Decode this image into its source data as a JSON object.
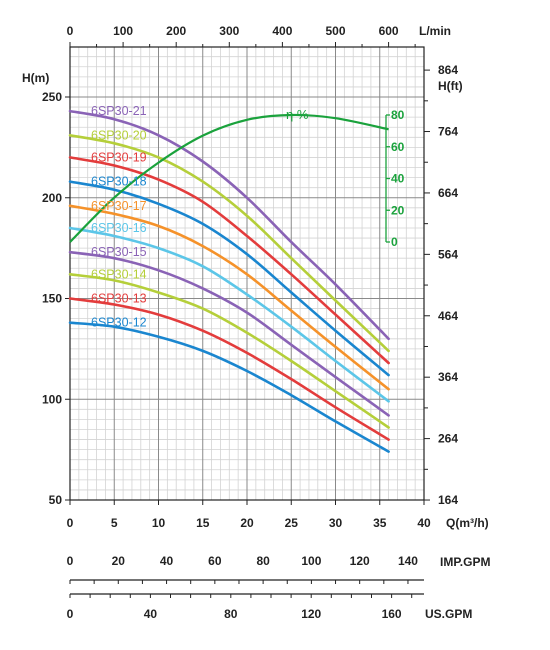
{
  "chart_data": {
    "type": "line",
    "units": {
      "q_m3h": "Q(m³/h)",
      "l_min": "L/min",
      "h_m": "H(m)",
      "h_ft": "H(ft)",
      "eff": "η %",
      "imp_gpm": "IMP.GPM",
      "us_gpm": "US.GPM"
    },
    "x_axis": {
      "range": [
        0,
        40
      ],
      "ticks": [
        "0",
        "5",
        "10",
        "15",
        "20",
        "25",
        "30",
        "35",
        "40"
      ]
    },
    "x_top_axis": {
      "range": [
        0,
        666.7
      ],
      "ticks": [
        {
          "v": 0,
          "label": "0"
        },
        {
          "v": 100,
          "label": "100"
        },
        {
          "v": 200,
          "label": "200"
        },
        {
          "v": 300,
          "label": "300"
        },
        {
          "v": 400,
          "label": "400"
        },
        {
          "v": 500,
          "label": "500"
        },
        {
          "v": 600,
          "label": "600"
        }
      ]
    },
    "y_axis": {
      "range": [
        50,
        250
      ],
      "ticks": [
        "50",
        "100",
        "150",
        "200",
        "250"
      ]
    },
    "y_right_axis": {
      "ticks": [
        {
          "v": 164,
          "label": "164"
        },
        {
          "v": 264,
          "label": "264"
        },
        {
          "v": 364,
          "label": "364"
        },
        {
          "v": 464,
          "label": "464"
        },
        {
          "v": 564,
          "label": "564"
        },
        {
          "v": 664,
          "label": "664"
        },
        {
          "v": 764,
          "label": "764"
        },
        {
          "v": 864,
          "label": "864"
        }
      ]
    },
    "efficiency_axis": {
      "range": [
        0,
        80
      ],
      "ticks": [
        "-0",
        "-20",
        "-40",
        "-60",
        "-80"
      ]
    },
    "imp_gpm_axis": {
      "ticks": [
        {
          "v": 0,
          "label": "0"
        },
        {
          "v": 20,
          "label": "20"
        },
        {
          "v": 40,
          "label": "40"
        },
        {
          "v": 60,
          "label": "60"
        },
        {
          "v": 80,
          "label": "80"
        },
        {
          "v": 100,
          "label": "100"
        },
        {
          "v": 120,
          "label": "120"
        },
        {
          "v": 140,
          "label": "140"
        }
      ]
    },
    "us_gpm_axis": {
      "ticks": [
        {
          "v": 0,
          "label": "0"
        },
        {
          "v": 40,
          "label": "40"
        },
        {
          "v": 80,
          "label": "80"
        },
        {
          "v": 120,
          "label": "120"
        },
        {
          "v": 160,
          "label": "160"
        }
      ]
    },
    "grid": true,
    "series": [
      {
        "name": "6SP30-21",
        "color": "#8a63b6",
        "x": [
          0,
          5,
          10,
          15,
          20,
          25,
          30,
          36
        ],
        "y": [
          243,
          239,
          231,
          218,
          200,
          178,
          157,
          130
        ]
      },
      {
        "name": "6SP30-20",
        "color": "#b5cf3a",
        "x": [
          0,
          5,
          10,
          15,
          20,
          25,
          30,
          36
        ],
        "y": [
          231,
          227,
          220,
          208,
          191,
          170,
          149,
          124
        ]
      },
      {
        "name": "6SP30-19",
        "color": "#e33c3c",
        "x": [
          0,
          5,
          10,
          15,
          20,
          25,
          30,
          36
        ],
        "y": [
          220,
          216,
          209,
          198,
          181,
          162,
          142,
          118
        ]
      },
      {
        "name": "6SP30-18",
        "color": "#1a86cf",
        "x": [
          0,
          5,
          10,
          15,
          20,
          25,
          30,
          36
        ],
        "y": [
          208,
          204,
          197,
          187,
          172,
          153,
          134,
          112
        ]
      },
      {
        "name": "6SP30-17",
        "color": "#f5922a",
        "x": [
          0,
          5,
          10,
          15,
          20,
          25,
          30,
          36
        ],
        "y": [
          196,
          192,
          186,
          176,
          162,
          144,
          126,
          105
        ]
      },
      {
        "name": "6SP30-16",
        "color": "#5cc6e8",
        "x": [
          0,
          5,
          10,
          15,
          20,
          25,
          30,
          36
        ],
        "y": [
          185,
          181,
          175,
          166,
          152,
          136,
          119,
          99
        ]
      },
      {
        "name": "6SP30-15",
        "color": "#8a63b6",
        "x": [
          0,
          5,
          10,
          15,
          20,
          25,
          30,
          36
        ],
        "y": [
          173,
          170,
          164,
          155,
          143,
          127,
          111,
          92
        ]
      },
      {
        "name": "6SP30-14",
        "color": "#b5cf3a",
        "x": [
          0,
          5,
          10,
          15,
          20,
          25,
          30,
          36
        ],
        "y": [
          162,
          159,
          153,
          145,
          133,
          119,
          104,
          86
        ]
      },
      {
        "name": "6SP30-13",
        "color": "#e33c3c",
        "x": [
          0,
          5,
          10,
          15,
          20,
          25,
          30,
          36
        ],
        "y": [
          150,
          147,
          142,
          134,
          123,
          110,
          96,
          80
        ]
      },
      {
        "name": "6SP30-12",
        "color": "#1a86cf",
        "x": [
          0,
          5,
          10,
          15,
          20,
          25,
          30,
          36
        ],
        "y": [
          138,
          136,
          131,
          124,
          114,
          102,
          89,
          74
        ]
      }
    ],
    "efficiency": {
      "name": "η %",
      "color": "#1aa23c",
      "x": [
        0,
        5,
        10,
        15,
        20,
        25,
        30,
        36
      ],
      "eff": [
        0,
        28,
        50,
        67,
        77,
        80,
        78,
        71
      ]
    }
  }
}
